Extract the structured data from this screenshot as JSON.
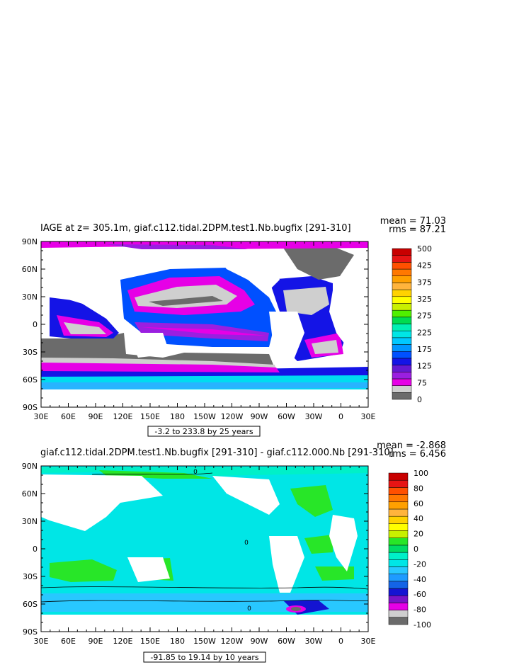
{
  "chart_data": [
    {
      "type": "heatmap",
      "title": "IAGE at z= 305.1m, giaf.c112.tidal.2DPM.test1.Nb.bugfix [291-310]",
      "stats": {
        "mean": "mean = 71.03",
        "rms": "rms = 87.21"
      },
      "x_ticks": [
        "30E",
        "60E",
        "90E",
        "120E",
        "150E",
        "180",
        "150W",
        "120W",
        "90W",
        "60W",
        "30W",
        "0",
        "30E"
      ],
      "y_ticks": [
        "90N",
        "60N",
        "30N",
        "0",
        "30S",
        "60S",
        "90S"
      ],
      "xlim": [
        30,
        390
      ],
      "ylim": [
        -90,
        90
      ],
      "range_label": "-3.2 to 233.8 by 25 years",
      "colorbar": {
        "labels": [
          "500",
          "425",
          "375",
          "325",
          "275",
          "225",
          "175",
          "125",
          "75",
          "0"
        ],
        "colors": [
          "#6b6b6b",
          "#cfcfcf",
          "#e600e6",
          "#9a1fe0",
          "#6419d2",
          "#1414e6",
          "#0050ff",
          "#0096ff",
          "#00c8ff",
          "#00e6e6",
          "#00f0b4",
          "#00dc50",
          "#50f000",
          "#c8f000",
          "#ffff00",
          "#ffd200",
          "#ffb43c",
          "#ffa000",
          "#ff7800",
          "#ff5000",
          "#e61414",
          "#c80000"
        ]
      }
    },
    {
      "type": "heatmap",
      "title": "giaf.c112.tidal.2DPM.test1.Nb.bugfix [291-310] - giaf.c112.000.Nb [291-310]",
      "stats": {
        "mean": "mean = -2.868",
        "rms": "rms = 6.456"
      },
      "x_ticks": [
        "30E",
        "60E",
        "90E",
        "120E",
        "150E",
        "180",
        "150W",
        "120W",
        "90W",
        "60W",
        "30W",
        "0",
        "30E"
      ],
      "y_ticks": [
        "90N",
        "60N",
        "30N",
        "0",
        "30S",
        "60S",
        "90S"
      ],
      "xlim": [
        30,
        390
      ],
      "ylim": [
        -90,
        90
      ],
      "range_label": "-91.85 to 19.14 by 10 years",
      "contour_labels": [
        "0",
        "0",
        "0"
      ],
      "colorbar": {
        "labels": [
          "100",
          "80",
          "60",
          "40",
          "20",
          "0",
          "-20",
          "-40",
          "-60",
          "-80",
          "-100"
        ],
        "colors": [
          "#6b6b6b",
          "#cfcfcf",
          "#e600e6",
          "#7814c8",
          "#1414d2",
          "#1464e6",
          "#1e9bff",
          "#28c8ff",
          "#00e6e6",
          "#00f0c8",
          "#00dc64",
          "#28e628",
          "#c8f000",
          "#ffff00",
          "#ffd200",
          "#ffb43c",
          "#ffa000",
          "#ff7800",
          "#ff5000",
          "#e61414",
          "#c80000"
        ]
      }
    }
  ]
}
